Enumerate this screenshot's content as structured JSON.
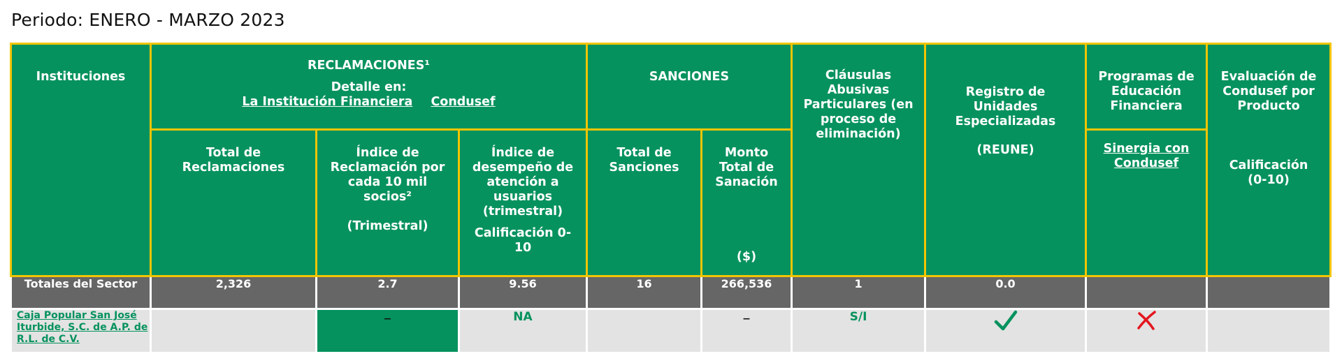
{
  "period_label": "Periodo: ENERO - MARZO 2023",
  "colors": {
    "green": "#06925e",
    "border": "#f2c500",
    "totals_bg": "#666666",
    "row_bg": "#e2e3e2",
    "cross": "#e4161f"
  },
  "headers": {
    "instituciones": "Instituciones",
    "reclamaciones": {
      "title": "RECLAMACIONES¹",
      "detalle": "Detalle en:",
      "link_institucion": "La Institución Financiera",
      "link_condusef": "Condusef"
    },
    "total_reclamaciones": "Total de Reclamaciones",
    "indice_reclamacion": {
      "text": "Índice de Reclamación por cada 10 mil socios²",
      "sub": "(Trimestral)"
    },
    "indice_desempeno": {
      "text": "Índice de desempeño de atención a usuarios (trimestral)",
      "sub": "Calificación 0-10"
    },
    "sanciones": "SANCIONES",
    "total_sanciones": "Total de Sanciones",
    "monto_sancion": {
      "text": "Monto Total de Sanación",
      "sub": "($)"
    },
    "clausulas": "Cláusulas Abusivas Particulares (en proceso de eliminación)",
    "registro": {
      "text": "Registro de Unidades Especializadas",
      "sub": "(REUNE)"
    },
    "programas": {
      "text": "Programas de Educación Financiera",
      "link": "Sinergia con Condusef"
    },
    "evaluacion": {
      "text": "Evaluación de Condusef por Producto",
      "sub": "Calificación (0-10)"
    }
  },
  "totals": {
    "label": "Totales del Sector",
    "total_reclamaciones": "2,326",
    "indice_reclamacion": "2.7",
    "indice_desempeno": "9.56",
    "total_sanciones": "16",
    "monto": "266,536",
    "clausulas": "1",
    "registro": "0.0",
    "programas": "",
    "evaluacion": ""
  },
  "rows": [
    {
      "institucion": "Caja Popular San José Iturbide, S.C. de A.P. de R.L. de C.V.",
      "total_reclamaciones": "",
      "indice_reclamacion": "–",
      "indice_desempeno": "NA",
      "total_sanciones": "",
      "monto": "–",
      "clausulas": "S/I",
      "registro_icon": "check-icon",
      "programas_icon": "cross-icon",
      "evaluacion": ""
    }
  ]
}
